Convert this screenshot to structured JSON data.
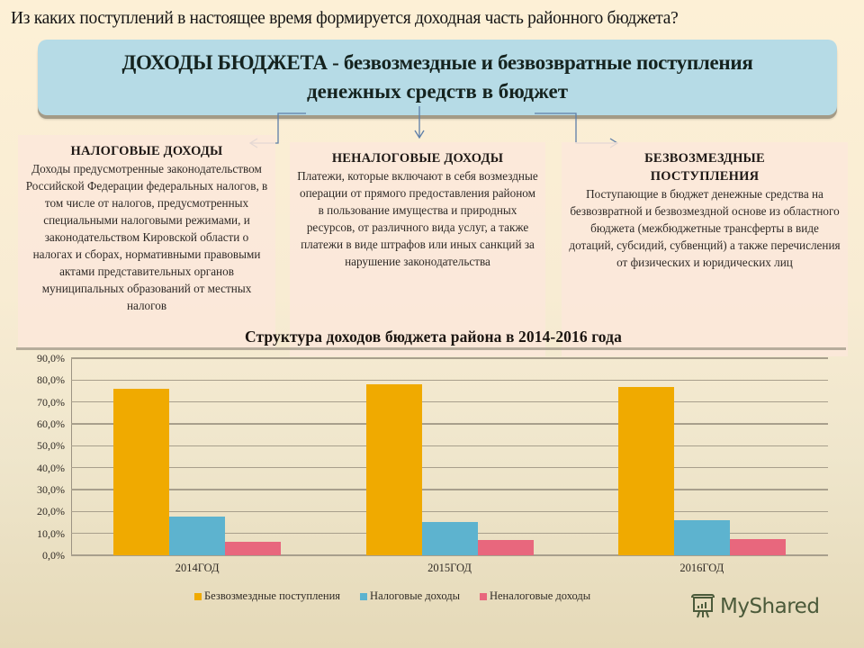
{
  "question": "Из  каких поступлений в настоящее время формируется доходная часть  районного бюджета?",
  "banner": {
    "title_bold": "ДОХОДЫ БЮДЖЕТА",
    "title_rest": " - безвозмездные и безвозвратные  поступления",
    "line2": "денежных средств  в  бюджет",
    "background": "#b6dbe6"
  },
  "cards": [
    {
      "title": "НАЛОГОВЫЕ ДОХОДЫ",
      "body": "Доходы предусмотренные законодательством Российской Федерации федеральных налогов, в том числе от налогов, предусмотренных специальными налоговыми режимами, и законодательством Кировской области о налогах и сборах, нормативными правовыми актами представительных органов муниципальных образований от местных налогов"
    },
    {
      "title": "НЕНАЛОГОВЫЕ ДОХОДЫ",
      "body": "Платежи, которые включают в себя возмездные операции от прямого предоставления районом в пользование имущества и природных ресурсов, от различного вида услуг, а также платежи в виде штрафов или иных санкций за нарушение законодательства"
    },
    {
      "title": "БЕЗВОЗМЕЗДНЫЕ ПОСТУПЛЕНИЯ",
      "body": "Поступающие в бюджет денежные средства на безвозвратной и безвозмездной основе из областного бюджета (межбюджетные трансферты в виде дотаций, субсидий, субвенций) а также перечисления от физических и юридических лиц"
    }
  ],
  "chart_data": {
    "type": "bar",
    "title": "Структура доходов бюджета района в 2014-2016 года",
    "categories": [
      "2014ГОД",
      "2015ГОД",
      "2016ГОД"
    ],
    "series": [
      {
        "name": "Безвозмездные  поступления",
        "color": "#f0aa00",
        "values": [
          76.1,
          78.1,
          77.0
        ]
      },
      {
        "name": "Налоговые доходы",
        "color": "#5db3cf",
        "values": [
          17.7,
          15.2,
          16.0
        ]
      },
      {
        "name": "Неналоговые доходы",
        "color": "#e8677d",
        "values": [
          6.2,
          7.0,
          7.3
        ]
      }
    ],
    "yticks": [
      "0,0%",
      "10,0%",
      "20,0%",
      "30,0%",
      "40,0%",
      "50,0%",
      "60,0%",
      "70,0%",
      "80,0%",
      "90,0%"
    ],
    "ylim": [
      0,
      90
    ],
    "xlabel": "",
    "ylabel": "",
    "grid": true,
    "legend_position": "bottom"
  },
  "watermark": {
    "text": "MyShared",
    "icon": "presentation-board-icon"
  }
}
